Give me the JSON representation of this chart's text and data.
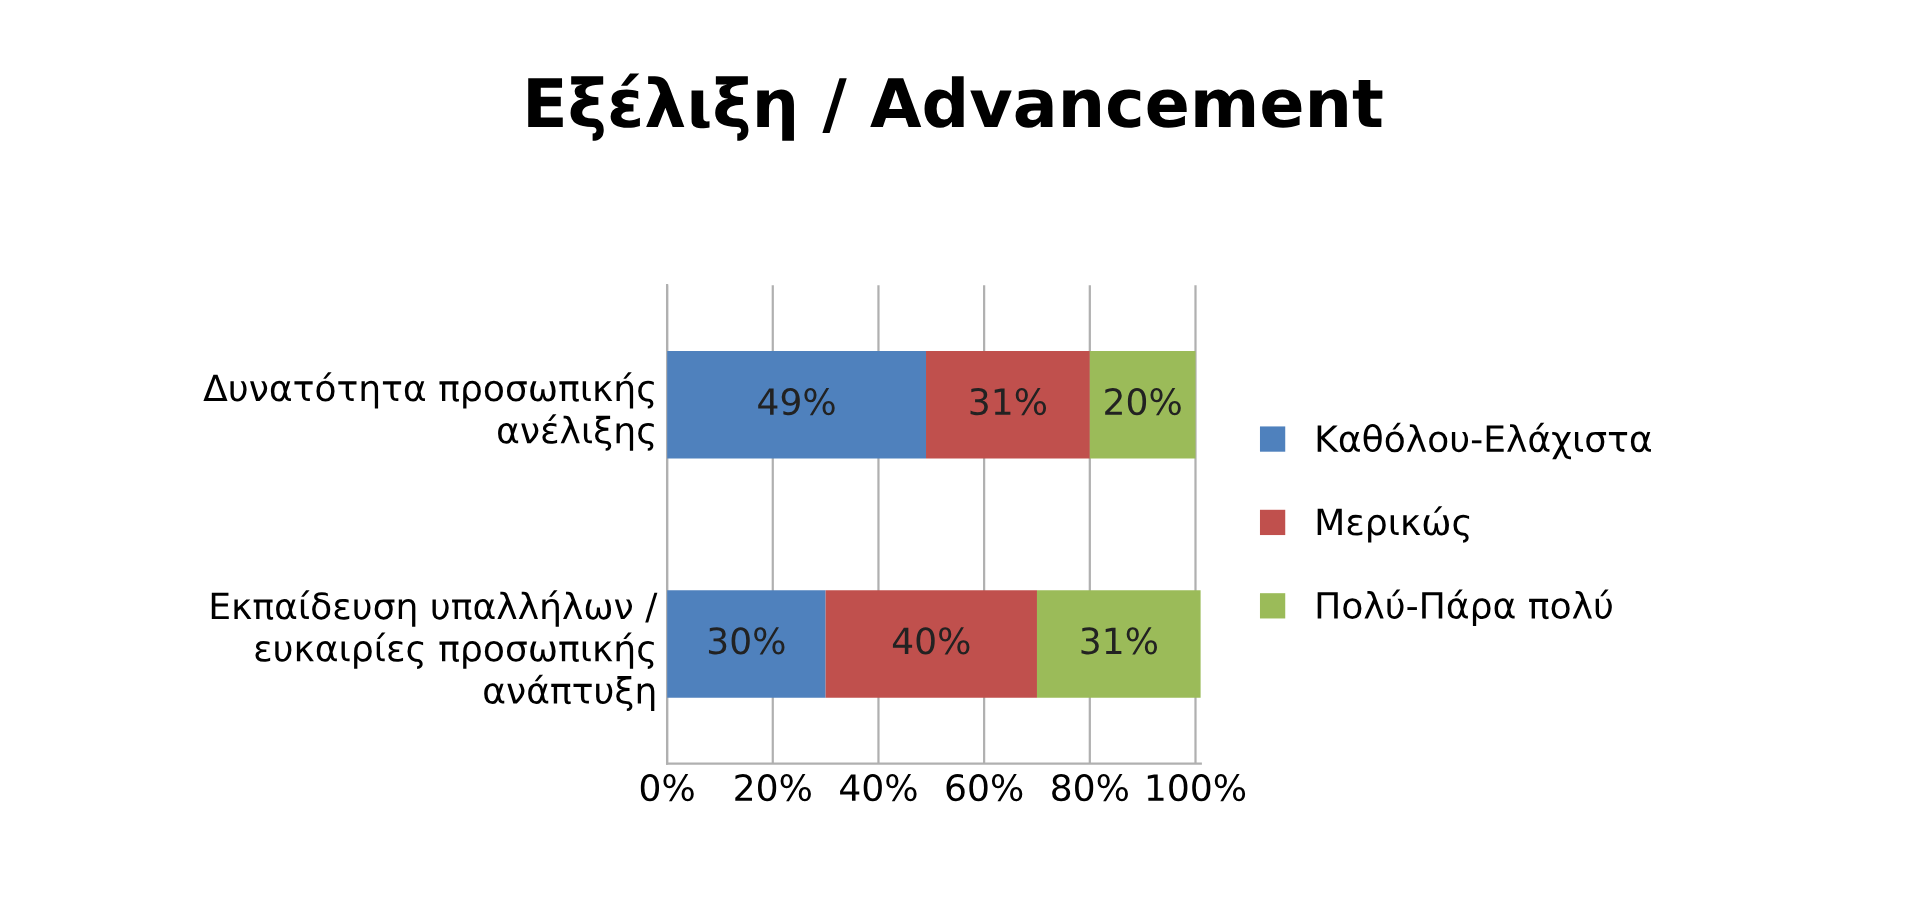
{
  "chart_data": {
    "type": "bar",
    "orientation": "horizontal",
    "stacked": true,
    "title": "Εξέλιξη / Advancement",
    "categories": [
      "Δυνατότητα προσωπικής\nανέλιξης",
      "Εκπαίδευση υπαλλήλων /\nευκαιρίες προσωπικής\nανάπτυξη"
    ],
    "series": [
      {
        "name": "Καθόλου-Ελάχιστα",
        "color": "#4f81bd",
        "values": [
          49,
          30
        ],
        "value_labels": [
          "49%",
          "30%"
        ]
      },
      {
        "name": "Μερικώς",
        "color": "#c0504d",
        "values": [
          31,
          40
        ],
        "value_labels": [
          "31%",
          "40%"
        ]
      },
      {
        "name": "Πολύ-Πάρα πολύ",
        "color": "#9bbb59",
        "values": [
          20,
          31
        ],
        "value_labels": [
          "20%",
          "31%"
        ]
      }
    ],
    "xlim": [
      0,
      101
    ],
    "xticks": [
      {
        "value": 0,
        "label": "0%"
      },
      {
        "value": 20,
        "label": "20%"
      },
      {
        "value": 40,
        "label": "40%"
      },
      {
        "value": 60,
        "label": "60%"
      },
      {
        "value": 80,
        "label": "80%"
      },
      {
        "value": 100,
        "label": "100%"
      }
    ],
    "grid": "x",
    "legend": "right"
  }
}
